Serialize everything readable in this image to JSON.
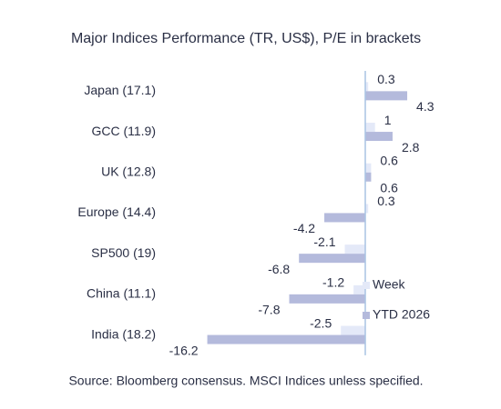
{
  "chart_data": {
    "type": "barh",
    "title": "Major Indices Performance (TR, US$), P/E in brackets",
    "source": "Source: Bloomberg consensus. MSCI Indices unless specified.",
    "categories": [
      "Japan (17.1)",
      "GCC (11.9)",
      "UK (12.8)",
      "Europe (14.4)",
      "SP500 (19)",
      "China (11.1)",
      "India (18.2)"
    ],
    "series": [
      {
        "name": "Week",
        "color": "#e4e9f8",
        "values": [
          0.3,
          1.0,
          0.6,
          0.3,
          -2.1,
          -1.2,
          -2.5
        ]
      },
      {
        "name": "YTD 2026",
        "color": "#b4badc",
        "values": [
          4.3,
          2.8,
          0.6,
          -4.2,
          -6.8,
          -7.8,
          -16.2
        ]
      }
    ],
    "xlim": [
      -17,
      8.5
    ],
    "legend": "lower right",
    "zero_line_color": "#a9c4e4"
  }
}
